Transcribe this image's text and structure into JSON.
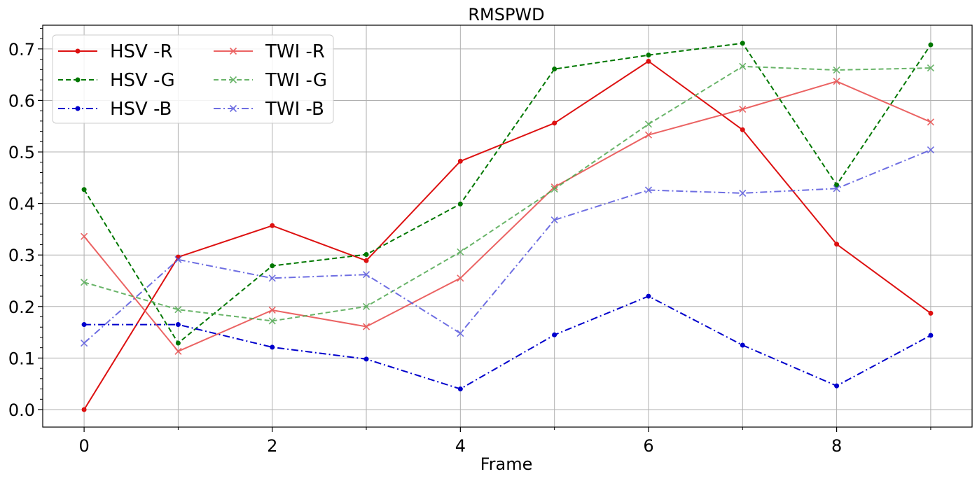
{
  "chart_data": {
    "type": "line",
    "title": "RMSPWD",
    "xlabel": "Frame",
    "ylabel": "",
    "x": [
      0,
      1,
      2,
      3,
      4,
      5,
      6,
      7,
      8,
      9
    ],
    "xlim": [
      -0.44,
      9.44
    ],
    "ylim": [
      -0.034,
      0.746
    ],
    "x_ticks": [
      0,
      2,
      4,
      6,
      8
    ],
    "x_tick_labels": [
      "0",
      "2",
      "4",
      "6",
      "8"
    ],
    "x_minor_ticks": [
      1,
      3,
      5,
      7,
      9
    ],
    "y_ticks": [
      0.0,
      0.1,
      0.2,
      0.3,
      0.4,
      0.5,
      0.6,
      0.7
    ],
    "y_tick_labels": [
      "0.0",
      "0.1",
      "0.2",
      "0.3",
      "0.4",
      "0.5",
      "0.6",
      "0.7"
    ],
    "y_minor_ticks": [
      0.02,
      0.04,
      0.06,
      0.08,
      0.12,
      0.14,
      0.16,
      0.18,
      0.22,
      0.24,
      0.26,
      0.28,
      0.32,
      0.34,
      0.36,
      0.38,
      0.42,
      0.44,
      0.46,
      0.48,
      0.52,
      0.54,
      0.56,
      0.58,
      0.62,
      0.64,
      0.66,
      0.68,
      0.72,
      0.74
    ],
    "grid": true,
    "legend": {
      "placement": "top-left",
      "columns": 2
    },
    "series": [
      {
        "name": "HSV -R",
        "color": "#dd1111",
        "linestyle": "solid",
        "marker": "dot",
        "opacity": 1.0,
        "values": [
          0.0,
          0.296,
          0.357,
          0.289,
          0.482,
          0.556,
          0.676,
          0.543,
          0.321,
          0.187
        ]
      },
      {
        "name": "HSV -G",
        "color": "#007700",
        "linestyle": "dashed",
        "marker": "dot",
        "opacity": 1.0,
        "values": [
          0.427,
          0.129,
          0.279,
          0.301,
          0.399,
          0.661,
          0.688,
          0.711,
          0.436,
          0.708
        ]
      },
      {
        "name": "HSV -B",
        "color": "#0000cc",
        "linestyle": "dashdot",
        "marker": "dot",
        "opacity": 1.0,
        "values": [
          0.165,
          0.165,
          0.121,
          0.098,
          0.04,
          0.145,
          0.22,
          0.125,
          0.046,
          0.144
        ]
      },
      {
        "name": "TWI -R",
        "color": "#e84848",
        "linestyle": "solid",
        "marker": "x",
        "opacity": 0.85,
        "values": [
          0.336,
          0.113,
          0.193,
          0.161,
          0.255,
          0.432,
          0.533,
          0.583,
          0.637,
          0.558
        ]
      },
      {
        "name": "TWI -G",
        "color": "#4fa84f",
        "linestyle": "dashed",
        "marker": "x",
        "opacity": 0.85,
        "values": [
          0.247,
          0.194,
          0.172,
          0.2,
          0.306,
          0.428,
          0.554,
          0.666,
          0.659,
          0.663
        ]
      },
      {
        "name": "TWI -B",
        "color": "#5555dd",
        "linestyle": "dashdot",
        "marker": "x",
        "opacity": 0.85,
        "values": [
          0.129,
          0.291,
          0.255,
          0.262,
          0.148,
          0.368,
          0.426,
          0.42,
          0.429,
          0.504
        ]
      }
    ]
  }
}
